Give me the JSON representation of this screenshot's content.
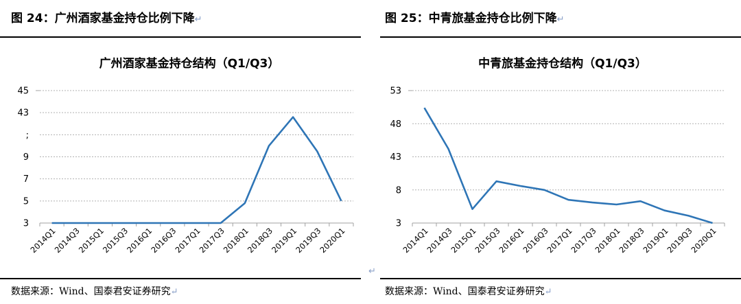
{
  "figures": [
    {
      "figure_title": "图 24：广州酒家基金持仓比例下降",
      "source": "数据来源：Wind、国泰君安证券研究"
    },
    {
      "figure_title": "图 25：中青旅基金持仓比例下降",
      "source": "数据来源：Wind、国泰君安证券研究"
    }
  ],
  "return_mark": "↵",
  "chart_data": [
    {
      "type": "line",
      "title": "广州酒家基金持仓结构（Q1/Q3）",
      "xlabel": "",
      "ylabel": "",
      "y_tick_labels": [
        "3",
        "5",
        "7",
        "9",
        ";",
        "43",
        "45"
      ],
      "ylim": [
        3,
        15
      ],
      "grid": true,
      "categories": [
        "2014Q1",
        "2014Q3",
        "2015Q1",
        "2015Q3",
        "2016Q1",
        "2016Q3",
        "2017Q1",
        "2017Q3",
        "2018Q1",
        "2018Q3",
        "2019Q1",
        "2019Q3",
        "2020Q1"
      ],
      "series": [
        {
          "color": "#2e75b6",
          "values": [
            3.0,
            3.0,
            3.0,
            3.0,
            3.0,
            3.0,
            3.0,
            3.0,
            4.8,
            10.0,
            12.6,
            9.5,
            5.0
          ]
        }
      ]
    },
    {
      "type": "line",
      "title": "中青旅基金持仓结构（Q1/Q3）",
      "xlabel": "",
      "ylabel": "",
      "y_tick_labels": [
        "3",
        "8",
        "43",
        "48",
        "53"
      ],
      "ylim": [
        3,
        23
      ],
      "grid": true,
      "categories": [
        "2014Q1",
        "2014Q3",
        "2015Q1",
        "2015Q3",
        "2016Q1",
        "2016Q3",
        "2017Q1",
        "2017Q3",
        "2018Q1",
        "2018Q3",
        "2019Q1",
        "2019Q3",
        "2020Q1"
      ],
      "series": [
        {
          "color": "#2e75b6",
          "values": [
            20.4,
            14.2,
            5.1,
            9.3,
            8.6,
            8.0,
            6.5,
            6.1,
            5.8,
            6.3,
            4.9,
            4.1,
            3.0
          ]
        }
      ]
    }
  ]
}
